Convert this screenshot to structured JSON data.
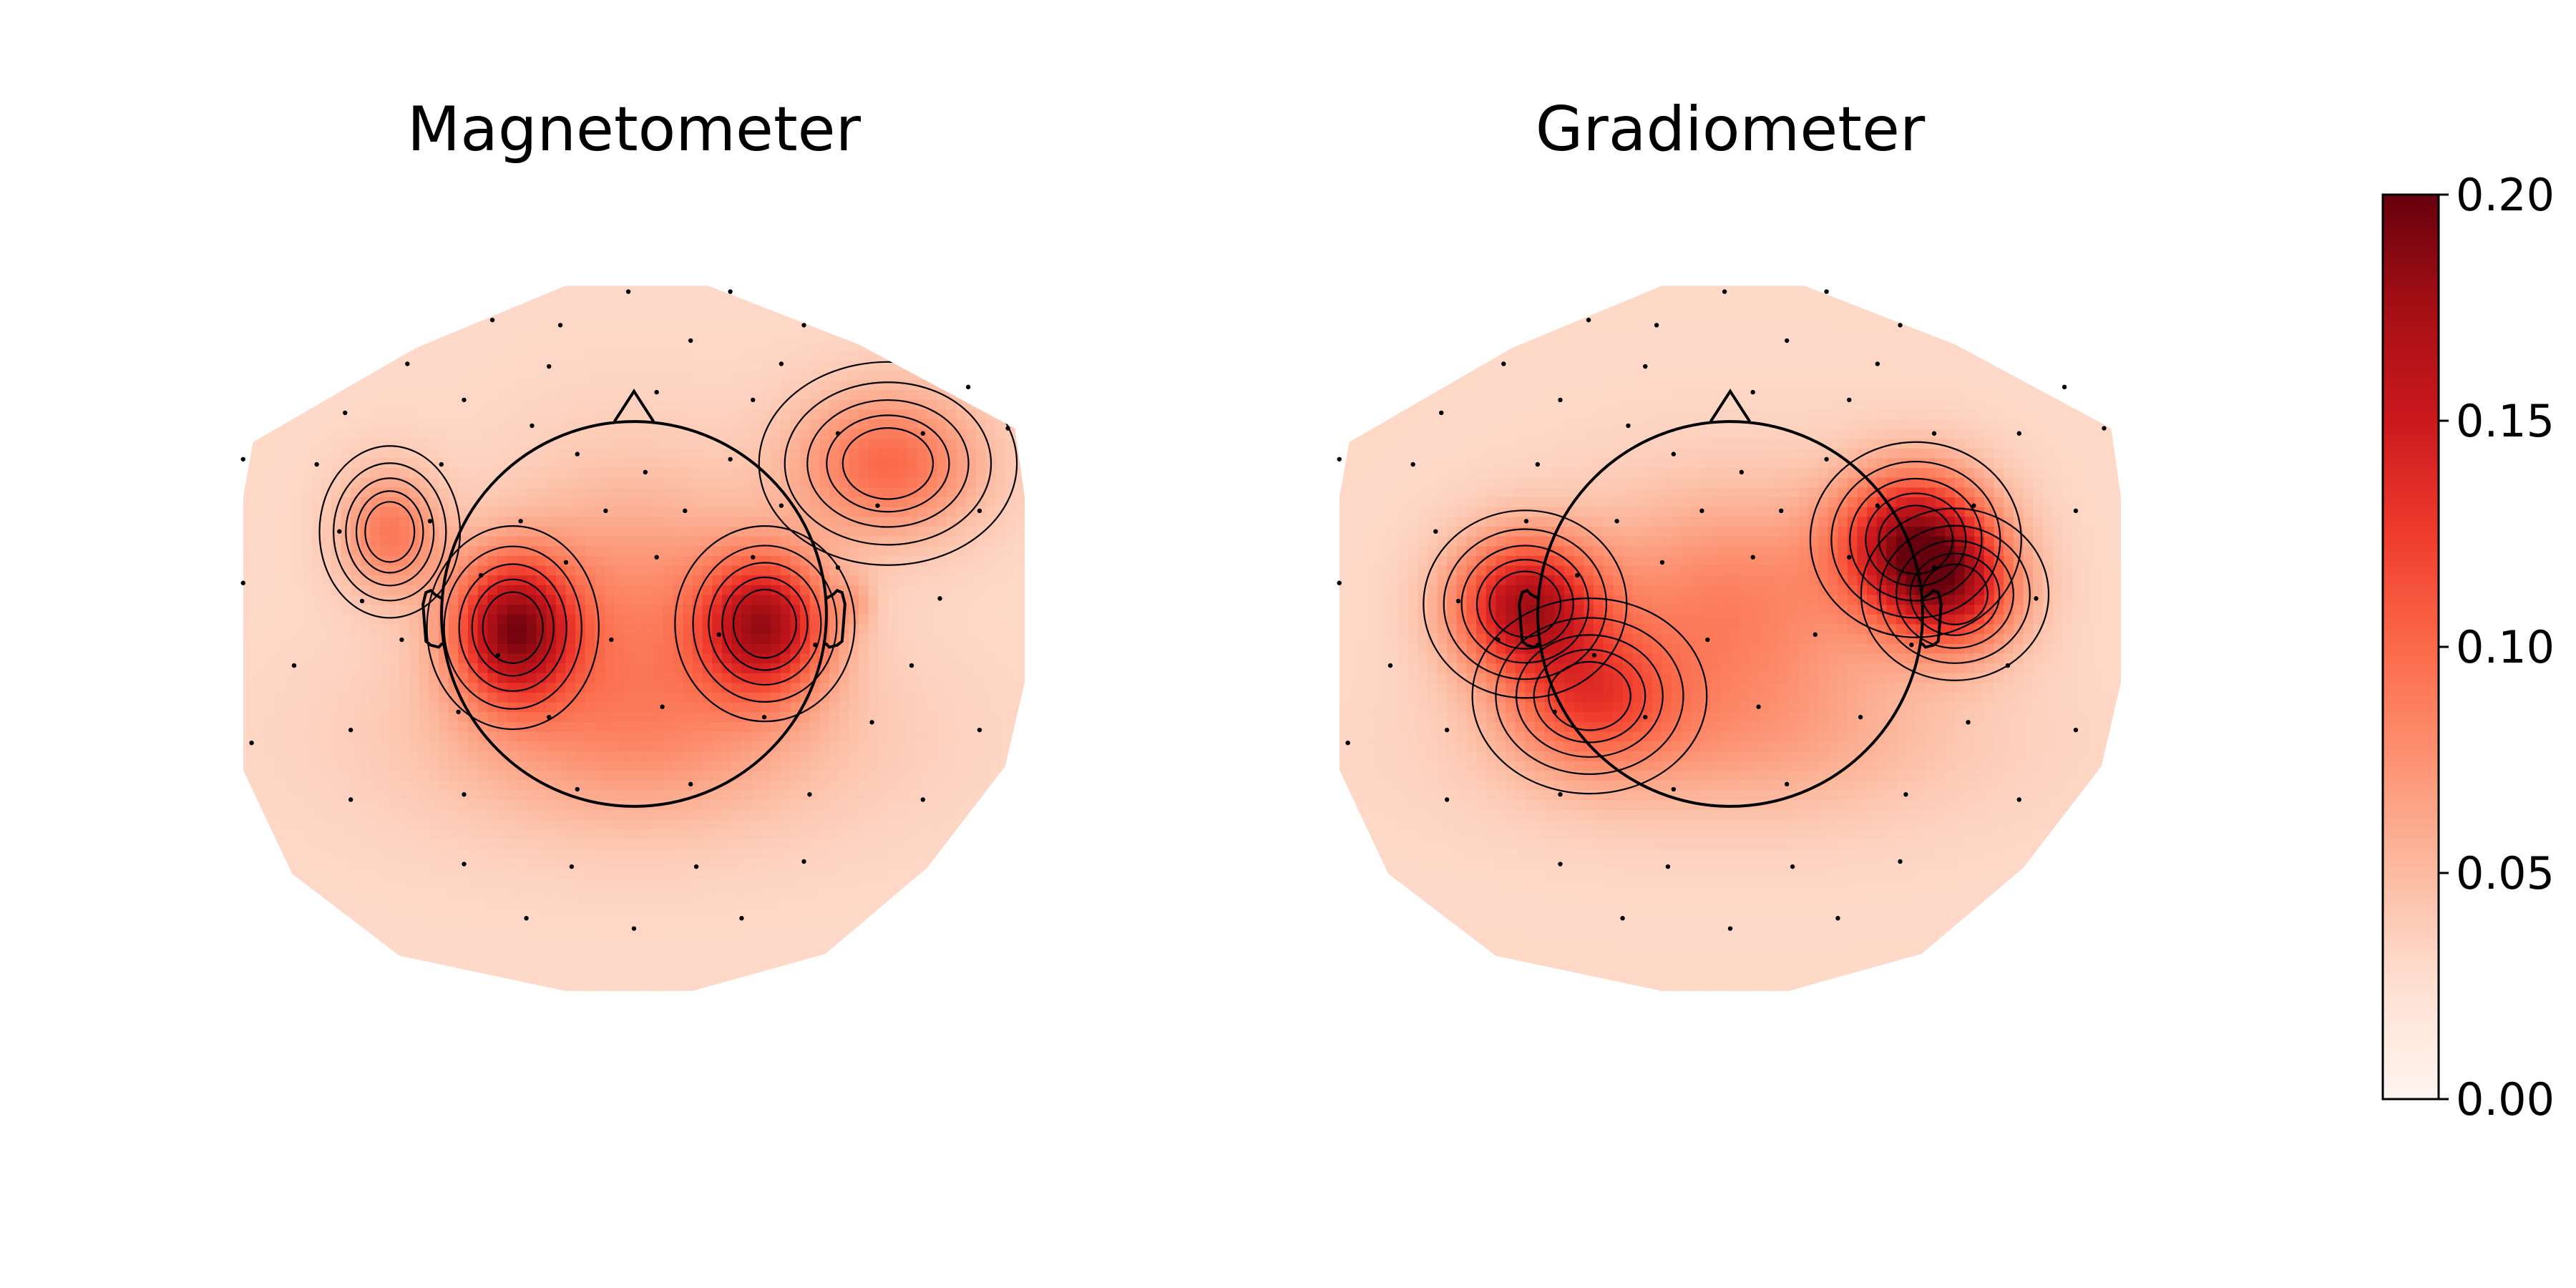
{
  "chart_data": [
    {
      "type": "heatmap",
      "title": "Magnetometer",
      "colormap": "Reds",
      "vlim": [
        0,
        0.2
      ],
      "blobs": [
        {
          "x": -0.62,
          "y": -0.07,
          "value": 0.14,
          "sx": 0.22,
          "sy": 0.26
        },
        {
          "x": 0.67,
          "y": -0.05,
          "value": 0.13,
          "sx": 0.23,
          "sy": 0.25
        },
        {
          "x": -1.25,
          "y": 0.42,
          "value": 0.06,
          "sx": 0.18,
          "sy": 0.22
        },
        {
          "x": 1.3,
          "y": 0.77,
          "value": 0.07,
          "sx": 0.33,
          "sy": 0.26
        },
        {
          "x": 1.13,
          "y": 0.06,
          "value": 0.02,
          "sx": 0.07,
          "sy": 0.09
        },
        {
          "x": 0.0,
          "y": 0.02,
          "value": 0.045,
          "sx": 0.45,
          "sy": 0.5
        },
        {
          "x": 0.0,
          "y": -0.62,
          "value": 0.035,
          "sx": 0.8,
          "sy": 0.35
        }
      ],
      "base": 0.03
    },
    {
      "type": "heatmap",
      "title": "Gradiometer",
      "colormap": "Reds",
      "vlim": [
        0,
        0.2
      ],
      "blobs": [
        {
          "x": -1.05,
          "y": 0.05,
          "value": 0.13,
          "sx": 0.26,
          "sy": 0.24
        },
        {
          "x": -0.72,
          "y": -0.42,
          "value": 0.07,
          "sx": 0.3,
          "sy": 0.25
        },
        {
          "x": 0.95,
          "y": 0.38,
          "value": 0.14,
          "sx": 0.27,
          "sy": 0.25
        },
        {
          "x": 1.15,
          "y": 0.1,
          "value": 0.09,
          "sx": 0.24,
          "sy": 0.22
        },
        {
          "x": 0.0,
          "y": 0.05,
          "value": 0.055,
          "sx": 0.55,
          "sy": 0.4
        },
        {
          "x": 0.0,
          "y": -0.65,
          "value": 0.03,
          "sx": 0.8,
          "sy": 0.3
        }
      ],
      "base": 0.03
    }
  ],
  "colorbar": {
    "ticks": [
      "0.00",
      "0.05",
      "0.10",
      "0.15",
      "0.20"
    ],
    "range": [
      0,
      0.2
    ]
  },
  "sensors": [
    [
      -0.02,
      1.25
    ],
    [
      0.34,
      1.25
    ],
    [
      -0.5,
      1.14
    ],
    [
      -0.26,
      1.12
    ],
    [
      0.6,
      1.12
    ],
    [
      -0.8,
      0.97
    ],
    [
      -0.3,
      0.96
    ],
    [
      0.2,
      1.06
    ],
    [
      0.52,
      0.97
    ],
    [
      -1.02,
      0.78
    ],
    [
      -0.6,
      0.83
    ],
    [
      -0.36,
      0.73
    ],
    [
      0.08,
      0.86
    ],
    [
      0.42,
      0.83
    ],
    [
      1.18,
      0.88
    ],
    [
      -1.38,
      0.6
    ],
    [
      -1.12,
      0.58
    ],
    [
      -0.68,
      0.58
    ],
    [
      -0.2,
      0.62
    ],
    [
      0.04,
      0.55
    ],
    [
      0.34,
      0.6
    ],
    [
      0.72,
      0.7
    ],
    [
      1.02,
      0.7
    ],
    [
      1.32,
      0.72
    ],
    [
      -1.04,
      0.32
    ],
    [
      -0.72,
      0.36
    ],
    [
      -0.4,
      0.36
    ],
    [
      -0.1,
      0.4
    ],
    [
      0.18,
      0.4
    ],
    [
      0.52,
      0.42
    ],
    [
      0.86,
      0.42
    ],
    [
      1.22,
      0.4
    ],
    [
      -1.38,
      0.12
    ],
    [
      -0.96,
      0.05
    ],
    [
      -0.54,
      0.15
    ],
    [
      -0.24,
      0.2
    ],
    [
      0.08,
      0.22
    ],
    [
      0.42,
      0.22
    ],
    [
      0.72,
      0.18
    ],
    [
      1.08,
      0.06
    ],
    [
      -1.2,
      -0.2
    ],
    [
      -0.82,
      -0.1
    ],
    [
      -0.48,
      -0.16
    ],
    [
      -0.08,
      -0.1
    ],
    [
      0.3,
      -0.08
    ],
    [
      0.64,
      -0.12
    ],
    [
      0.98,
      -0.2
    ],
    [
      -1.35,
      -0.5
    ],
    [
      -1.0,
      -0.45
    ],
    [
      -0.62,
      -0.38
    ],
    [
      -0.3,
      -0.4
    ],
    [
      0.1,
      -0.36
    ],
    [
      0.46,
      -0.4
    ],
    [
      0.84,
      -0.42
    ],
    [
      1.22,
      -0.45
    ],
    [
      -1.0,
      -0.72
    ],
    [
      -0.6,
      -0.7
    ],
    [
      -0.2,
      -0.68
    ],
    [
      0.2,
      -0.66
    ],
    [
      0.62,
      -0.7
    ],
    [
      1.02,
      -0.72
    ],
    [
      -0.6,
      -0.97
    ],
    [
      -0.22,
      -0.98
    ],
    [
      0.22,
      -0.98
    ],
    [
      0.6,
      -0.96
    ],
    [
      -0.38,
      -1.18
    ],
    [
      0.0,
      -1.22
    ],
    [
      0.38,
      -1.18
    ]
  ]
}
